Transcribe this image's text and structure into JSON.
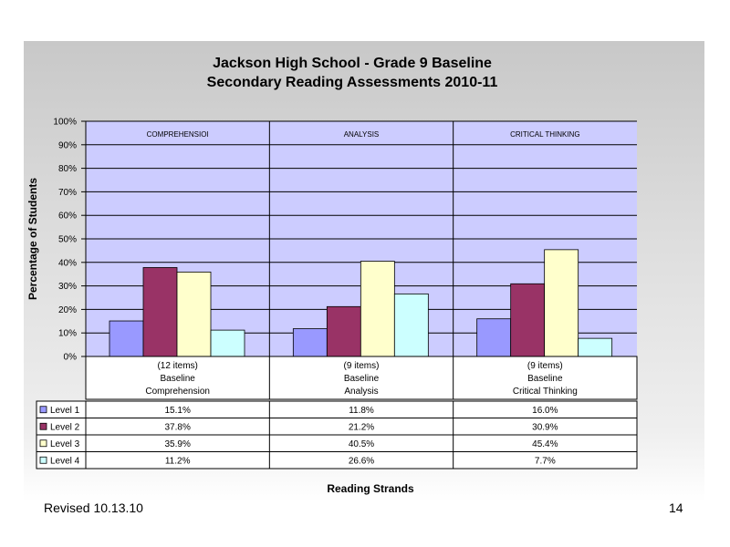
{
  "footer": {
    "revised": "Revised  10.13.10",
    "page_number": "14"
  },
  "chart_data": {
    "type": "bar",
    "title": [
      "Jackson High School - Grade 9 Baseline",
      "Secondary Reading Assessments 2010-11"
    ],
    "xlabel": "Reading Strands",
    "ylabel": "Percentage of Students",
    "ylim": [
      0,
      100
    ],
    "yticks": [
      "0%",
      "10%",
      "20%",
      "30%",
      "40%",
      "50%",
      "60%",
      "70%",
      "80%",
      "90%",
      "100%"
    ],
    "strands": [
      "COMPREHENSIOI",
      "ANALYSIS",
      "CRITICAL THINKING"
    ],
    "categories": [
      [
        "(12 items)",
        "Baseline",
        "Comprehension"
      ],
      [
        "(9 items)",
        "Baseline",
        "Analysis"
      ],
      [
        "(9 items)",
        "Baseline",
        "Critical Thinking"
      ]
    ],
    "series": [
      {
        "name": "Level 1",
        "color": "#9999ff",
        "values": [
          15.1,
          11.8,
          16.0
        ],
        "labels": [
          "15.1%",
          "11.8%",
          "16.0%"
        ]
      },
      {
        "name": "Level 2",
        "color": "#993366",
        "values": [
          37.8,
          21.2,
          30.9
        ],
        "labels": [
          "37.8%",
          "21.2%",
          "30.9%"
        ]
      },
      {
        "name": "Level 3",
        "color": "#ffffcc",
        "values": [
          35.9,
          40.5,
          45.4
        ],
        "labels": [
          "35.9%",
          "40.5%",
          "45.4%"
        ]
      },
      {
        "name": "Level 4",
        "color": "#ccffff",
        "values": [
          11.2,
          26.6,
          7.7
        ],
        "labels": [
          "11.2%",
          "26.6%",
          "7.7%"
        ]
      }
    ],
    "plot_background": "#ccccff",
    "grid": true,
    "legend": "table-left"
  }
}
